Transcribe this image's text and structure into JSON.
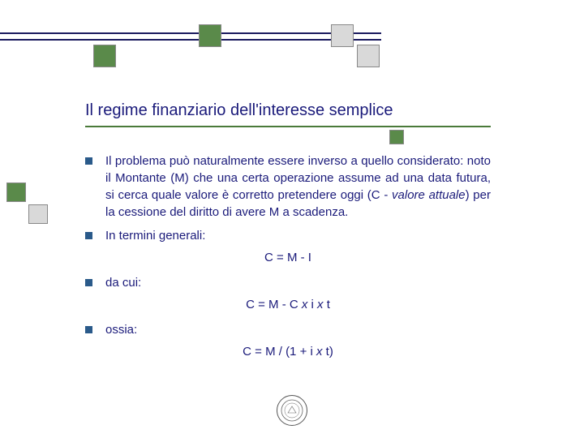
{
  "title": "Il regime finanziario dell'interesse semplice",
  "bullets": [
    {
      "text_html": "Il problema può naturalmente essere inverso a quello considerato: noto il Montante (M) che una certa operazione assume ad una data futura, si cerca quale valore è corretto pretendere oggi (C - <span class=\"italic\">valore attuale</span>) per la cessione del diritto di avere M a scadenza."
    },
    {
      "text": "In termini generali:"
    }
  ],
  "formula1": "C = M - I",
  "bullet3": "da cui:",
  "formula2_html": "C = M - C <span class=\"italic\">x</span> i <span class=\"italic\">x</span> t",
  "bullet4": "ossia:",
  "formula3_html": "C = M / (1 + i <span class=\"italic\">x</span> t)",
  "colors": {
    "text": "#1a1a7a",
    "accent_green": "#5a8a4a",
    "bullet": "#2a5a8a",
    "line_dark": "#1a1a5e"
  }
}
